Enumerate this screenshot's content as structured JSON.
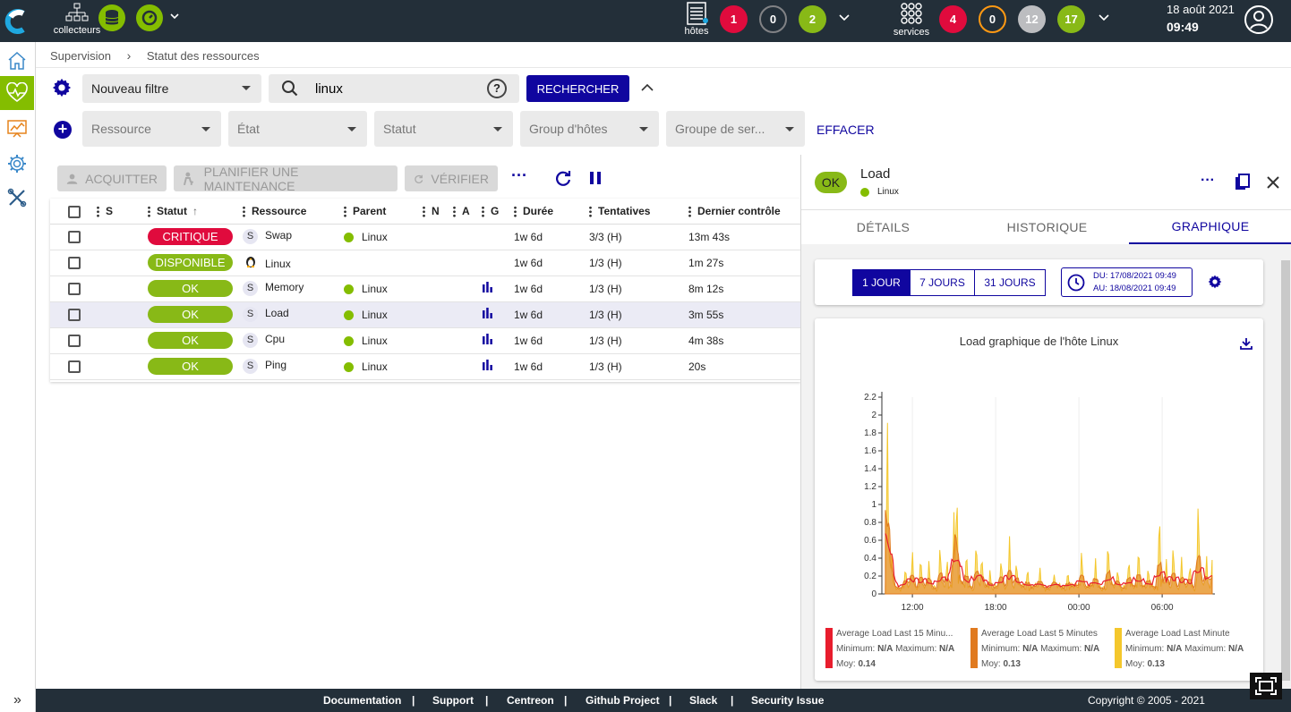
{
  "topbar": {
    "collectors_label": "collecteurs",
    "hosts_label": "hôtes",
    "hosts_counts": [
      "1",
      "0",
      "2"
    ],
    "services_label": "services",
    "services_counts": [
      "4",
      "0",
      "12",
      "17"
    ],
    "date": "18 août 2021",
    "time": "09:49",
    "colors": {
      "down": "#e00b3d",
      "unreachable": "#818285",
      "up": "#88b917",
      "pending": "#bcbdc0",
      "warning": "#ff9913",
      "dark": "#232f39"
    }
  },
  "breadcrumb": {
    "items": [
      "Supervision",
      "Statut des ressources"
    ]
  },
  "filters": {
    "filter_select": "Nouveau filtre",
    "search_value": "linux",
    "search_button": "RECHERCHER",
    "criteria": [
      "Ressource",
      "État",
      "Statut",
      "Group d'hôtes",
      "Groupe de ser..."
    ],
    "clear_button": "EFFACER"
  },
  "actions": {
    "ack": "ACQUITTER",
    "downtime": "PLANIFIER UNE MAINTENANCE",
    "check": "VÉRIFIER"
  },
  "table": {
    "columns": [
      "S",
      "Statut",
      "Ressource",
      "Parent",
      "N",
      "A",
      "G",
      "Durée",
      "Tentatives",
      "Dernier contrôle"
    ],
    "rows": [
      {
        "status": "CRITIQUE",
        "status_color": "#e00b3d",
        "type": "S",
        "resource": "Swap",
        "parent": "Linux",
        "graph": false,
        "duration": "1w 6d",
        "tries": "3/3 (H)",
        "last_check": "13m 43s"
      },
      {
        "status": "DISPONIBLE",
        "status_color": "#88b917",
        "type": "host",
        "resource": "Linux",
        "parent": "",
        "graph": false,
        "duration": "1w 6d",
        "tries": "1/3 (H)",
        "last_check": "1m 27s"
      },
      {
        "status": "OK",
        "status_color": "#88b917",
        "type": "S",
        "resource": "Memory",
        "parent": "Linux",
        "graph": true,
        "duration": "1w 6d",
        "tries": "1/3 (H)",
        "last_check": "8m 12s"
      },
      {
        "status": "OK",
        "status_color": "#88b917",
        "type": "S",
        "resource": "Load",
        "parent": "Linux",
        "graph": true,
        "duration": "1w 6d",
        "tries": "1/3 (H)",
        "last_check": "3m 55s"
      },
      {
        "status": "OK",
        "status_color": "#88b917",
        "type": "S",
        "resource": "Cpu",
        "parent": "Linux",
        "graph": true,
        "duration": "1w 6d",
        "tries": "1/3 (H)",
        "last_check": "4m 38s"
      },
      {
        "status": "OK",
        "status_color": "#88b917",
        "type": "S",
        "resource": "Ping",
        "parent": "Linux",
        "graph": true,
        "duration": "1w 6d",
        "tries": "1/3 (H)",
        "last_check": "20s"
      }
    ]
  },
  "panel": {
    "status": "OK",
    "name": "Load",
    "parent": "Linux",
    "tabs": [
      "DÉTAILS",
      "HISTORIQUE",
      "GRAPHIQUE"
    ],
    "periods": [
      "1 JOUR",
      "7 JOURS",
      "31 JOURS"
    ],
    "date_from": "DU: 17/08/2021 09:49",
    "date_to": "AU: 18/08/2021 09:49"
  },
  "chart_data": {
    "type": "area",
    "title": "Load graphique de l'hôte Linux",
    "ylim": [
      0,
      2.2
    ],
    "y_ticks": [
      "0",
      "0.2",
      "0.4",
      "0.6",
      "0.8",
      "1",
      "1.2",
      "1.4",
      "1.6",
      "1.8",
      "2",
      "2.2"
    ],
    "x_ticks": [
      "12:00",
      "18:00",
      "00:00",
      "06:00"
    ],
    "x_tick_positions_hours": [
      12,
      18,
      24,
      30
    ],
    "x_range_hours": [
      9.8,
      33.8
    ],
    "series": [
      {
        "name": "Average Load Last 15 Minu...",
        "color": "#e81d2d",
        "min": "N/A",
        "max": "N/A",
        "avg": "0.14"
      },
      {
        "name": "Average Load Last 5 Minutes",
        "color": "#e07a1f",
        "min": "N/A",
        "max": "N/A",
        "avg": "0.13"
      },
      {
        "name": "Average Load Last Minute",
        "color": "#f4c72c",
        "min": "N/A",
        "max": "N/A",
        "avg": "0.13"
      }
    ],
    "legend_labels": {
      "min": "Minimum:",
      "max": "Maximum:",
      "avg": "Moy:"
    },
    "peaks": [
      [
        10.2,
        2.03
      ],
      [
        10.5,
        0.55
      ],
      [
        11.5,
        0.35
      ],
      [
        12.0,
        0.52
      ],
      [
        12.6,
        0.48
      ],
      [
        13.2,
        0.4
      ],
      [
        14.0,
        0.62
      ],
      [
        14.5,
        0.45
      ],
      [
        15.0,
        0.95
      ],
      [
        15.2,
        1.3
      ],
      [
        15.9,
        0.55
      ],
      [
        16.6,
        0.68
      ],
      [
        17.0,
        0.5
      ],
      [
        17.6,
        0.3
      ],
      [
        18.4,
        0.45
      ],
      [
        19.0,
        0.65
      ],
      [
        19.5,
        0.42
      ],
      [
        20.3,
        0.34
      ],
      [
        21.2,
        0.3
      ],
      [
        22.2,
        0.25
      ],
      [
        23.2,
        0.3
      ],
      [
        24.2,
        0.55
      ],
      [
        25.2,
        0.4
      ],
      [
        26.1,
        0.68
      ],
      [
        26.8,
        0.32
      ],
      [
        27.6,
        0.45
      ],
      [
        28.3,
        0.6
      ],
      [
        29.0,
        0.35
      ],
      [
        29.8,
        1.03
      ],
      [
        30.3,
        0.4
      ],
      [
        30.8,
        0.62
      ],
      [
        31.4,
        0.42
      ],
      [
        32.0,
        0.38
      ],
      [
        32.6,
        1.15
      ],
      [
        33.2,
        0.45
      ],
      [
        33.6,
        0.38
      ]
    ]
  },
  "footer": {
    "links": [
      "Documentation",
      "Support",
      "Centreon",
      "Github Project",
      "Slack",
      "Security Issue"
    ],
    "copyright": "Copyright © 2005 - 2021"
  }
}
